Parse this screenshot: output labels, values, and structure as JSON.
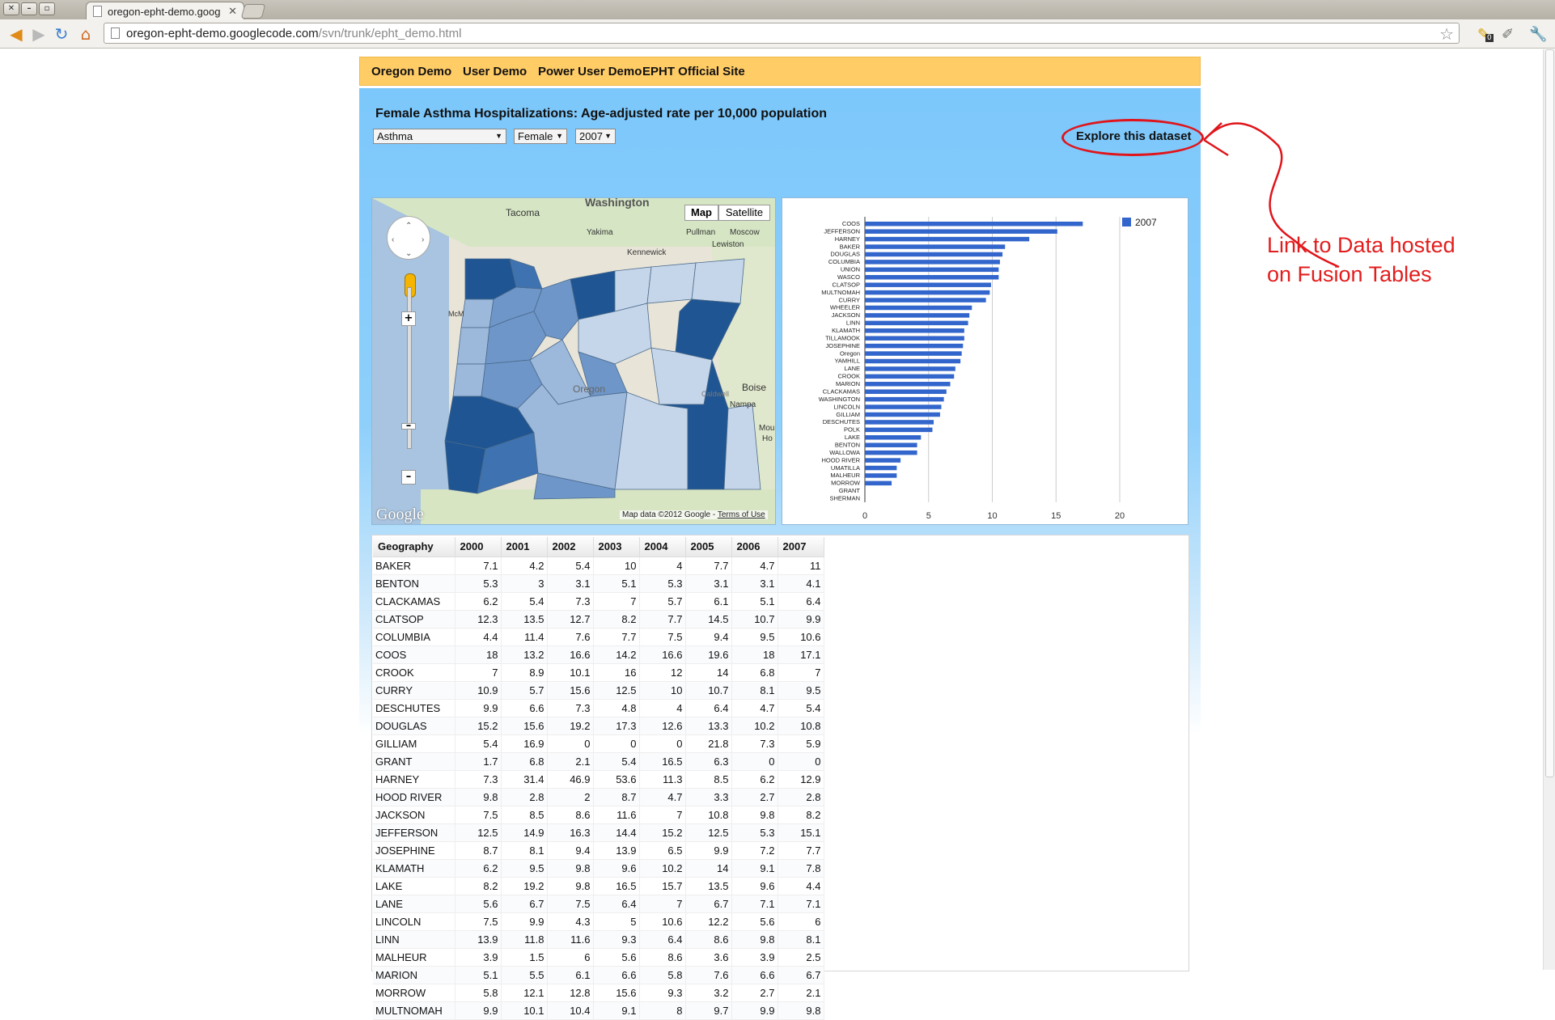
{
  "browser": {
    "tab_title": "oregon-epht-demo.goog",
    "url_host": "oregon-epht-demo.googlecode.com",
    "url_path": "/svn/trunk/epht_demo.html",
    "extension_badge": "0"
  },
  "nav": {
    "items": [
      "Oregon Demo",
      "User Demo",
      "Power User Demo",
      "EPHT Official Site"
    ]
  },
  "title": "Female Asthma Hospitalizations: Age-adjusted rate per 10,000 population",
  "filters": {
    "condition": "Asthma",
    "sex": "Female",
    "year": "2007"
  },
  "explore_link": "Explore this dataset",
  "annotation": {
    "line1": "Link to Data hosted",
    "line2": "on Fusion Tables",
    "color": "#e31d1d"
  },
  "map": {
    "type_map": "Map",
    "type_satellite": "Satellite",
    "logo": "Google",
    "credit": "Map data ©2012 Google -",
    "terms": "Terms of Use",
    "place_labels": [
      "Washington",
      "Tacoma",
      "Yakima",
      "Kennewick",
      "Pullman",
      "Moscow",
      "Lewiston",
      "Boise",
      "Nampa",
      "Caldwell",
      "Oregon",
      "Mou",
      "Ho",
      "McM"
    ],
    "shade_colors": [
      "#c6d6ea",
      "#9cb8db",
      "#6e96c9",
      "#3e72b0",
      "#1f5592"
    ]
  },
  "chart_data": {
    "type": "bar",
    "orientation": "horizontal",
    "series": [
      {
        "name": "2007",
        "color": "#3366cc"
      }
    ],
    "categories": [
      "COOS",
      "JEFFERSON",
      "HARNEY",
      "BAKER",
      "DOUGLAS",
      "COLUMBIA",
      "UNION",
      "WASCO",
      "CLATSOP",
      "MULTNOMAH",
      "CURRY",
      "WHEELER",
      "JACKSON",
      "LINN",
      "KLAMATH",
      "TILLAMOOK",
      "JOSEPHINE",
      "Oregon",
      "YAMHILL",
      "LANE",
      "CROOK",
      "MARION",
      "CLACKAMAS",
      "WASHINGTON",
      "LINCOLN",
      "GILLIAM",
      "DESCHUTES",
      "POLK",
      "LAKE",
      "BENTON",
      "WALLOWA",
      "HOOD RIVER",
      "UMATILLA",
      "MALHEUR",
      "MORROW",
      "GRANT",
      "SHERMAN"
    ],
    "values": [
      17.1,
      15.1,
      12.9,
      11,
      10.8,
      10.6,
      10.5,
      10.5,
      9.9,
      9.8,
      9.5,
      8.4,
      8.2,
      8.1,
      7.8,
      7.8,
      7.7,
      7.6,
      7.5,
      7.1,
      7,
      6.7,
      6.4,
      6.2,
      6,
      5.9,
      5.4,
      5.3,
      4.4,
      4.1,
      4.1,
      2.8,
      2.5,
      2.5,
      2.1,
      0,
      0
    ],
    "xticks": [
      "0",
      "5",
      "10",
      "15",
      "20"
    ],
    "xlim": [
      0,
      20
    ],
    "legend_position": "top-right",
    "grid": true
  },
  "table": {
    "headers": [
      "Geography",
      "2000",
      "2001",
      "2002",
      "2003",
      "2004",
      "2005",
      "2006",
      "2007"
    ],
    "rows": [
      [
        "BAKER",
        "7.1",
        "4.2",
        "5.4",
        "10",
        "4",
        "7.7",
        "4.7",
        "11"
      ],
      [
        "BENTON",
        "5.3",
        "3",
        "3.1",
        "5.1",
        "5.3",
        "3.1",
        "3.1",
        "4.1"
      ],
      [
        "CLACKAMAS",
        "6.2",
        "5.4",
        "7.3",
        "7",
        "5.7",
        "6.1",
        "5.1",
        "6.4"
      ],
      [
        "CLATSOP",
        "12.3",
        "13.5",
        "12.7",
        "8.2",
        "7.7",
        "14.5",
        "10.7",
        "9.9"
      ],
      [
        "COLUMBIA",
        "4.4",
        "11.4",
        "7.6",
        "7.7",
        "7.5",
        "9.4",
        "9.5",
        "10.6"
      ],
      [
        "COOS",
        "18",
        "13.2",
        "16.6",
        "14.2",
        "16.6",
        "19.6",
        "18",
        "17.1"
      ],
      [
        "CROOK",
        "7",
        "8.9",
        "10.1",
        "16",
        "12",
        "14",
        "6.8",
        "7"
      ],
      [
        "CURRY",
        "10.9",
        "5.7",
        "15.6",
        "12.5",
        "10",
        "10.7",
        "8.1",
        "9.5"
      ],
      [
        "DESCHUTES",
        "9.9",
        "6.6",
        "7.3",
        "4.8",
        "4",
        "6.4",
        "4.7",
        "5.4"
      ],
      [
        "DOUGLAS",
        "15.2",
        "15.6",
        "19.2",
        "17.3",
        "12.6",
        "13.3",
        "10.2",
        "10.8"
      ],
      [
        "GILLIAM",
        "5.4",
        "16.9",
        "0",
        "0",
        "0",
        "21.8",
        "7.3",
        "5.9"
      ],
      [
        "GRANT",
        "1.7",
        "6.8",
        "2.1",
        "5.4",
        "16.5",
        "6.3",
        "0",
        "0"
      ],
      [
        "HARNEY",
        "7.3",
        "31.4",
        "46.9",
        "53.6",
        "11.3",
        "8.5",
        "6.2",
        "12.9"
      ],
      [
        "HOOD RIVER",
        "9.8",
        "2.8",
        "2",
        "8.7",
        "4.7",
        "3.3",
        "2.7",
        "2.8"
      ],
      [
        "JACKSON",
        "7.5",
        "8.5",
        "8.6",
        "11.6",
        "7",
        "10.8",
        "9.8",
        "8.2"
      ],
      [
        "JEFFERSON",
        "12.5",
        "14.9",
        "16.3",
        "14.4",
        "15.2",
        "12.5",
        "5.3",
        "15.1"
      ],
      [
        "JOSEPHINE",
        "8.7",
        "8.1",
        "9.4",
        "13.9",
        "6.5",
        "9.9",
        "7.2",
        "7.7"
      ],
      [
        "KLAMATH",
        "6.2",
        "9.5",
        "9.8",
        "9.6",
        "10.2",
        "14",
        "9.1",
        "7.8"
      ],
      [
        "LAKE",
        "8.2",
        "19.2",
        "9.8",
        "16.5",
        "15.7",
        "13.5",
        "9.6",
        "4.4"
      ],
      [
        "LANE",
        "5.6",
        "6.7",
        "7.5",
        "6.4",
        "7",
        "6.7",
        "7.1",
        "7.1"
      ],
      [
        "LINCOLN",
        "7.5",
        "9.9",
        "4.3",
        "5",
        "10.6",
        "12.2",
        "5.6",
        "6"
      ],
      [
        "LINN",
        "13.9",
        "11.8",
        "11.6",
        "9.3",
        "6.4",
        "8.6",
        "9.8",
        "8.1"
      ],
      [
        "MALHEUR",
        "3.9",
        "1.5",
        "6",
        "5.6",
        "8.6",
        "3.6",
        "3.9",
        "2.5"
      ],
      [
        "MARION",
        "5.1",
        "5.5",
        "6.1",
        "6.6",
        "5.8",
        "7.6",
        "6.6",
        "6.7"
      ],
      [
        "MORROW",
        "5.8",
        "12.1",
        "12.8",
        "15.6",
        "9.3",
        "3.2",
        "2.7",
        "2.1"
      ],
      [
        "MULTNOMAH",
        "9.9",
        "10.1",
        "10.4",
        "9.1",
        "8",
        "9.7",
        "9.9",
        "9.8"
      ]
    ]
  }
}
